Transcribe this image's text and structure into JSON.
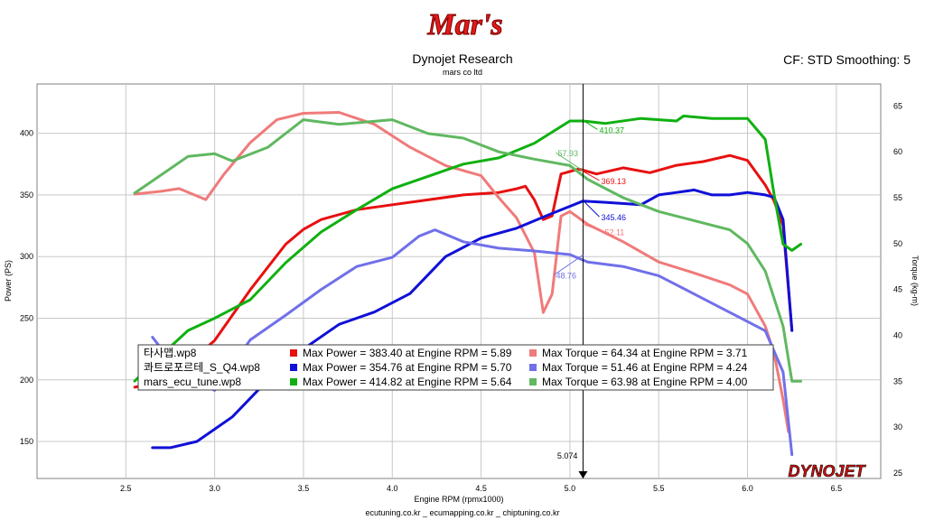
{
  "header": {
    "brand": "Mar's",
    "title": "Dynojet Research",
    "subtitle": "mars co ltd",
    "cf_label": "CF: STD Smoothing: 5"
  },
  "footer": {
    "text": "ecutuning.co.kr _ ecumapping.co.kr _ chiptuning.co.kr"
  },
  "watermark": {
    "text": "DYNOJET"
  },
  "chart_data": {
    "type": "line",
    "xlabel": "Engine RPM (rpmx1000)",
    "ylabel": "Power (PS)",
    "y2label": "Torque (kg-m)",
    "xlim": [
      2.0,
      6.75
    ],
    "ylim": [
      120,
      440
    ],
    "y2lim": [
      24.4,
      67.4
    ],
    "x_ticks": [
      2.5,
      3.0,
      3.5,
      4.0,
      4.5,
      5.0,
      5.5,
      6.0,
      6.5
    ],
    "x_tick_labels": [
      "2.5",
      "3.0",
      "3.5",
      "4.0",
      "4.5",
      "5.0",
      "5.5",
      "6.0",
      "6.5"
    ],
    "y_ticks": [
      150,
      200,
      250,
      300,
      350,
      400
    ],
    "y2_ticks": [
      25,
      30,
      35,
      40,
      45,
      50,
      55,
      60,
      65
    ],
    "grid": true,
    "cursor": {
      "x": 5.074,
      "label": "5.074"
    },
    "series": [
      {
        "name": "Max Power = 383.40 at Engine RPM = 5.89",
        "file": "타사맵.wp8",
        "axis": "left",
        "color": "#e81010",
        "x": [
          2.55,
          2.7,
          2.85,
          3.0,
          3.2,
          3.4,
          3.5,
          3.6,
          3.8,
          4.0,
          4.2,
          4.4,
          4.6,
          4.7,
          4.75,
          4.8,
          4.85,
          4.9,
          4.95,
          5.05,
          5.15,
          5.3,
          5.45,
          5.6,
          5.75,
          5.9,
          6.0,
          6.1,
          6.15,
          6.2,
          6.25
        ],
        "y": [
          194,
          198,
          213,
          232,
          273,
          310,
          322,
          330,
          338,
          342,
          346,
          350,
          352,
          355,
          357,
          346,
          330,
          333,
          367,
          371,
          367,
          372,
          368,
          374,
          377,
          382,
          378,
          358,
          345,
          325,
          240
        ]
      },
      {
        "name": "Max Torque = 64.34 at Engine RPM = 3.71",
        "file": "타사맵.wp8",
        "axis": "right",
        "color": "#f07a7a",
        "x": [
          2.55,
          2.7,
          2.8,
          2.95,
          3.05,
          3.2,
          3.35,
          3.5,
          3.7,
          3.9,
          4.1,
          4.3,
          4.5,
          4.6,
          4.7,
          4.8,
          4.85,
          4.9,
          4.95,
          5.0,
          5.1,
          5.3,
          5.5,
          5.7,
          5.9,
          6.0,
          6.1,
          6.15,
          6.2,
          6.23
        ],
        "y": [
          55.4,
          55.7,
          56.0,
          54.8,
          57.5,
          61.0,
          63.5,
          64.2,
          64.3,
          63.0,
          60.5,
          58.5,
          57.4,
          55.0,
          52.8,
          49.0,
          42.5,
          44.5,
          53.0,
          53.5,
          52.1,
          50.2,
          48.0,
          46.8,
          45.5,
          44.5,
          41.0,
          38.0,
          33.0,
          29.5
        ]
      },
      {
        "name": "Max Power = 354.76 at Engine RPM = 5.70",
        "file": "콰트로포르테_S_Q4.wp8",
        "axis": "left",
        "color": "#1010d8",
        "x": [
          2.65,
          2.75,
          2.9,
          3.1,
          3.3,
          3.5,
          3.7,
          3.9,
          4.1,
          4.3,
          4.5,
          4.7,
          4.9,
          5.074,
          5.2,
          5.4,
          5.5,
          5.6,
          5.7,
          5.8,
          5.9,
          6.0,
          6.1,
          6.15,
          6.2,
          6.25
        ],
        "y": [
          145,
          145,
          150,
          170,
          200,
          225,
          245,
          255,
          270,
          300,
          315,
          323,
          335,
          345,
          344,
          342,
          350,
          352,
          354,
          350,
          350,
          352,
          350,
          348,
          330,
          240
        ]
      },
      {
        "name": "Max Torque = 51.46 at Engine RPM = 4.24",
        "file": "콰트로포르테_S_Q4.wp8",
        "axis": "right",
        "color": "#7070ea",
        "x": [
          2.65,
          2.8,
          3.0,
          3.2,
          3.4,
          3.6,
          3.8,
          4.0,
          4.15,
          4.24,
          4.4,
          4.6,
          4.8,
          5.0,
          5.1,
          5.3,
          5.5,
          5.7,
          5.9,
          6.0,
          6.1,
          6.2,
          6.25
        ],
        "y": [
          39.8,
          36.0,
          34.0,
          39.5,
          42.2,
          45.0,
          47.5,
          48.5,
          50.8,
          51.5,
          50.2,
          49.5,
          49.2,
          48.8,
          48.0,
          47.5,
          46.5,
          44.5,
          42.5,
          41.5,
          40.5,
          36.0,
          27.0
        ]
      },
      {
        "name": "Max Power = 414.82 at Engine RPM = 5.64",
        "file": "mars_ecu_tune.wp8",
        "axis": "left",
        "color": "#10b010",
        "x": [
          2.55,
          2.7,
          2.85,
          3.0,
          3.2,
          3.4,
          3.6,
          3.8,
          4.0,
          4.2,
          4.4,
          4.6,
          4.8,
          5.0,
          5.074,
          5.2,
          5.4,
          5.6,
          5.64,
          5.8,
          6.0,
          6.1,
          6.15,
          6.2,
          6.25,
          6.3
        ],
        "y": [
          199,
          220,
          240,
          250,
          265,
          295,
          320,
          338,
          355,
          365,
          375,
          380,
          392,
          410,
          410,
          408,
          412,
          410,
          414,
          412,
          412,
          395,
          350,
          310,
          305,
          310
        ]
      },
      {
        "name": "Max Torque = 63.98 at Engine RPM = 4.00",
        "file": "mars_ecu_tune.wp8",
        "axis": "right",
        "color": "#60b860",
        "x": [
          2.55,
          2.7,
          2.85,
          3.0,
          3.1,
          3.3,
          3.5,
          3.7,
          4.0,
          4.2,
          4.4,
          4.6,
          4.8,
          5.0,
          5.1,
          5.3,
          5.5,
          5.7,
          5.9,
          6.0,
          6.1,
          6.2,
          6.25,
          6.3
        ],
        "y": [
          55.5,
          57.5,
          59.5,
          59.8,
          59.0,
          60.5,
          63.5,
          63.0,
          63.5,
          62.0,
          61.5,
          60.0,
          59.2,
          58.5,
          57.0,
          55.0,
          53.5,
          52.5,
          51.5,
          50.0,
          47.0,
          41.0,
          35.0,
          35.0
        ]
      }
    ],
    "legend": {
      "position": "bottom-left",
      "rows": [
        {
          "file": "타사맵.wp8",
          "power": {
            "text": "Max Power = 383.40 at Engine RPM = 5.89",
            "color": "#e81010"
          },
          "torque": {
            "text": "Max Torque = 64.34 at Engine RPM = 3.71",
            "color": "#f07a7a"
          }
        },
        {
          "file": "콰트로포르테_S_Q4.wp8",
          "power": {
            "text": "Max Power = 354.76 at Engine RPM = 5.70",
            "color": "#1010d8"
          },
          "torque": {
            "text": "Max Torque = 51.46 at Engine RPM = 4.24",
            "color": "#7070ea"
          }
        },
        {
          "file": "mars_ecu_tune.wp8",
          "power": {
            "text": "Max Power = 414.82 at Engine RPM = 5.64",
            "color": "#10b010"
          },
          "torque": {
            "text": "Max Torque = 63.98 at Engine RPM = 4.00",
            "color": "#60b860"
          }
        }
      ]
    },
    "cursor_labels": [
      {
        "text": "410.37",
        "x": 5.074,
        "y": 410.37,
        "axis": "left",
        "color": "#10b010"
      },
      {
        "text": "57.93",
        "x": 5.074,
        "y": 57.93,
        "axis": "right",
        "color": "#60b860"
      },
      {
        "text": "369.13",
        "x": 5.074,
        "y": 369.13,
        "axis": "left",
        "color": "#e81010"
      },
      {
        "text": "345.46",
        "x": 5.074,
        "y": 345.46,
        "axis": "left",
        "color": "#1010d8"
      },
      {
        "text": "52.11",
        "x": 5.074,
        "y": 52.11,
        "axis": "right",
        "color": "#f07a7a"
      },
      {
        "text": "48.76",
        "x": 5.074,
        "y": 48.76,
        "axis": "right",
        "color": "#7070ea"
      }
    ]
  }
}
